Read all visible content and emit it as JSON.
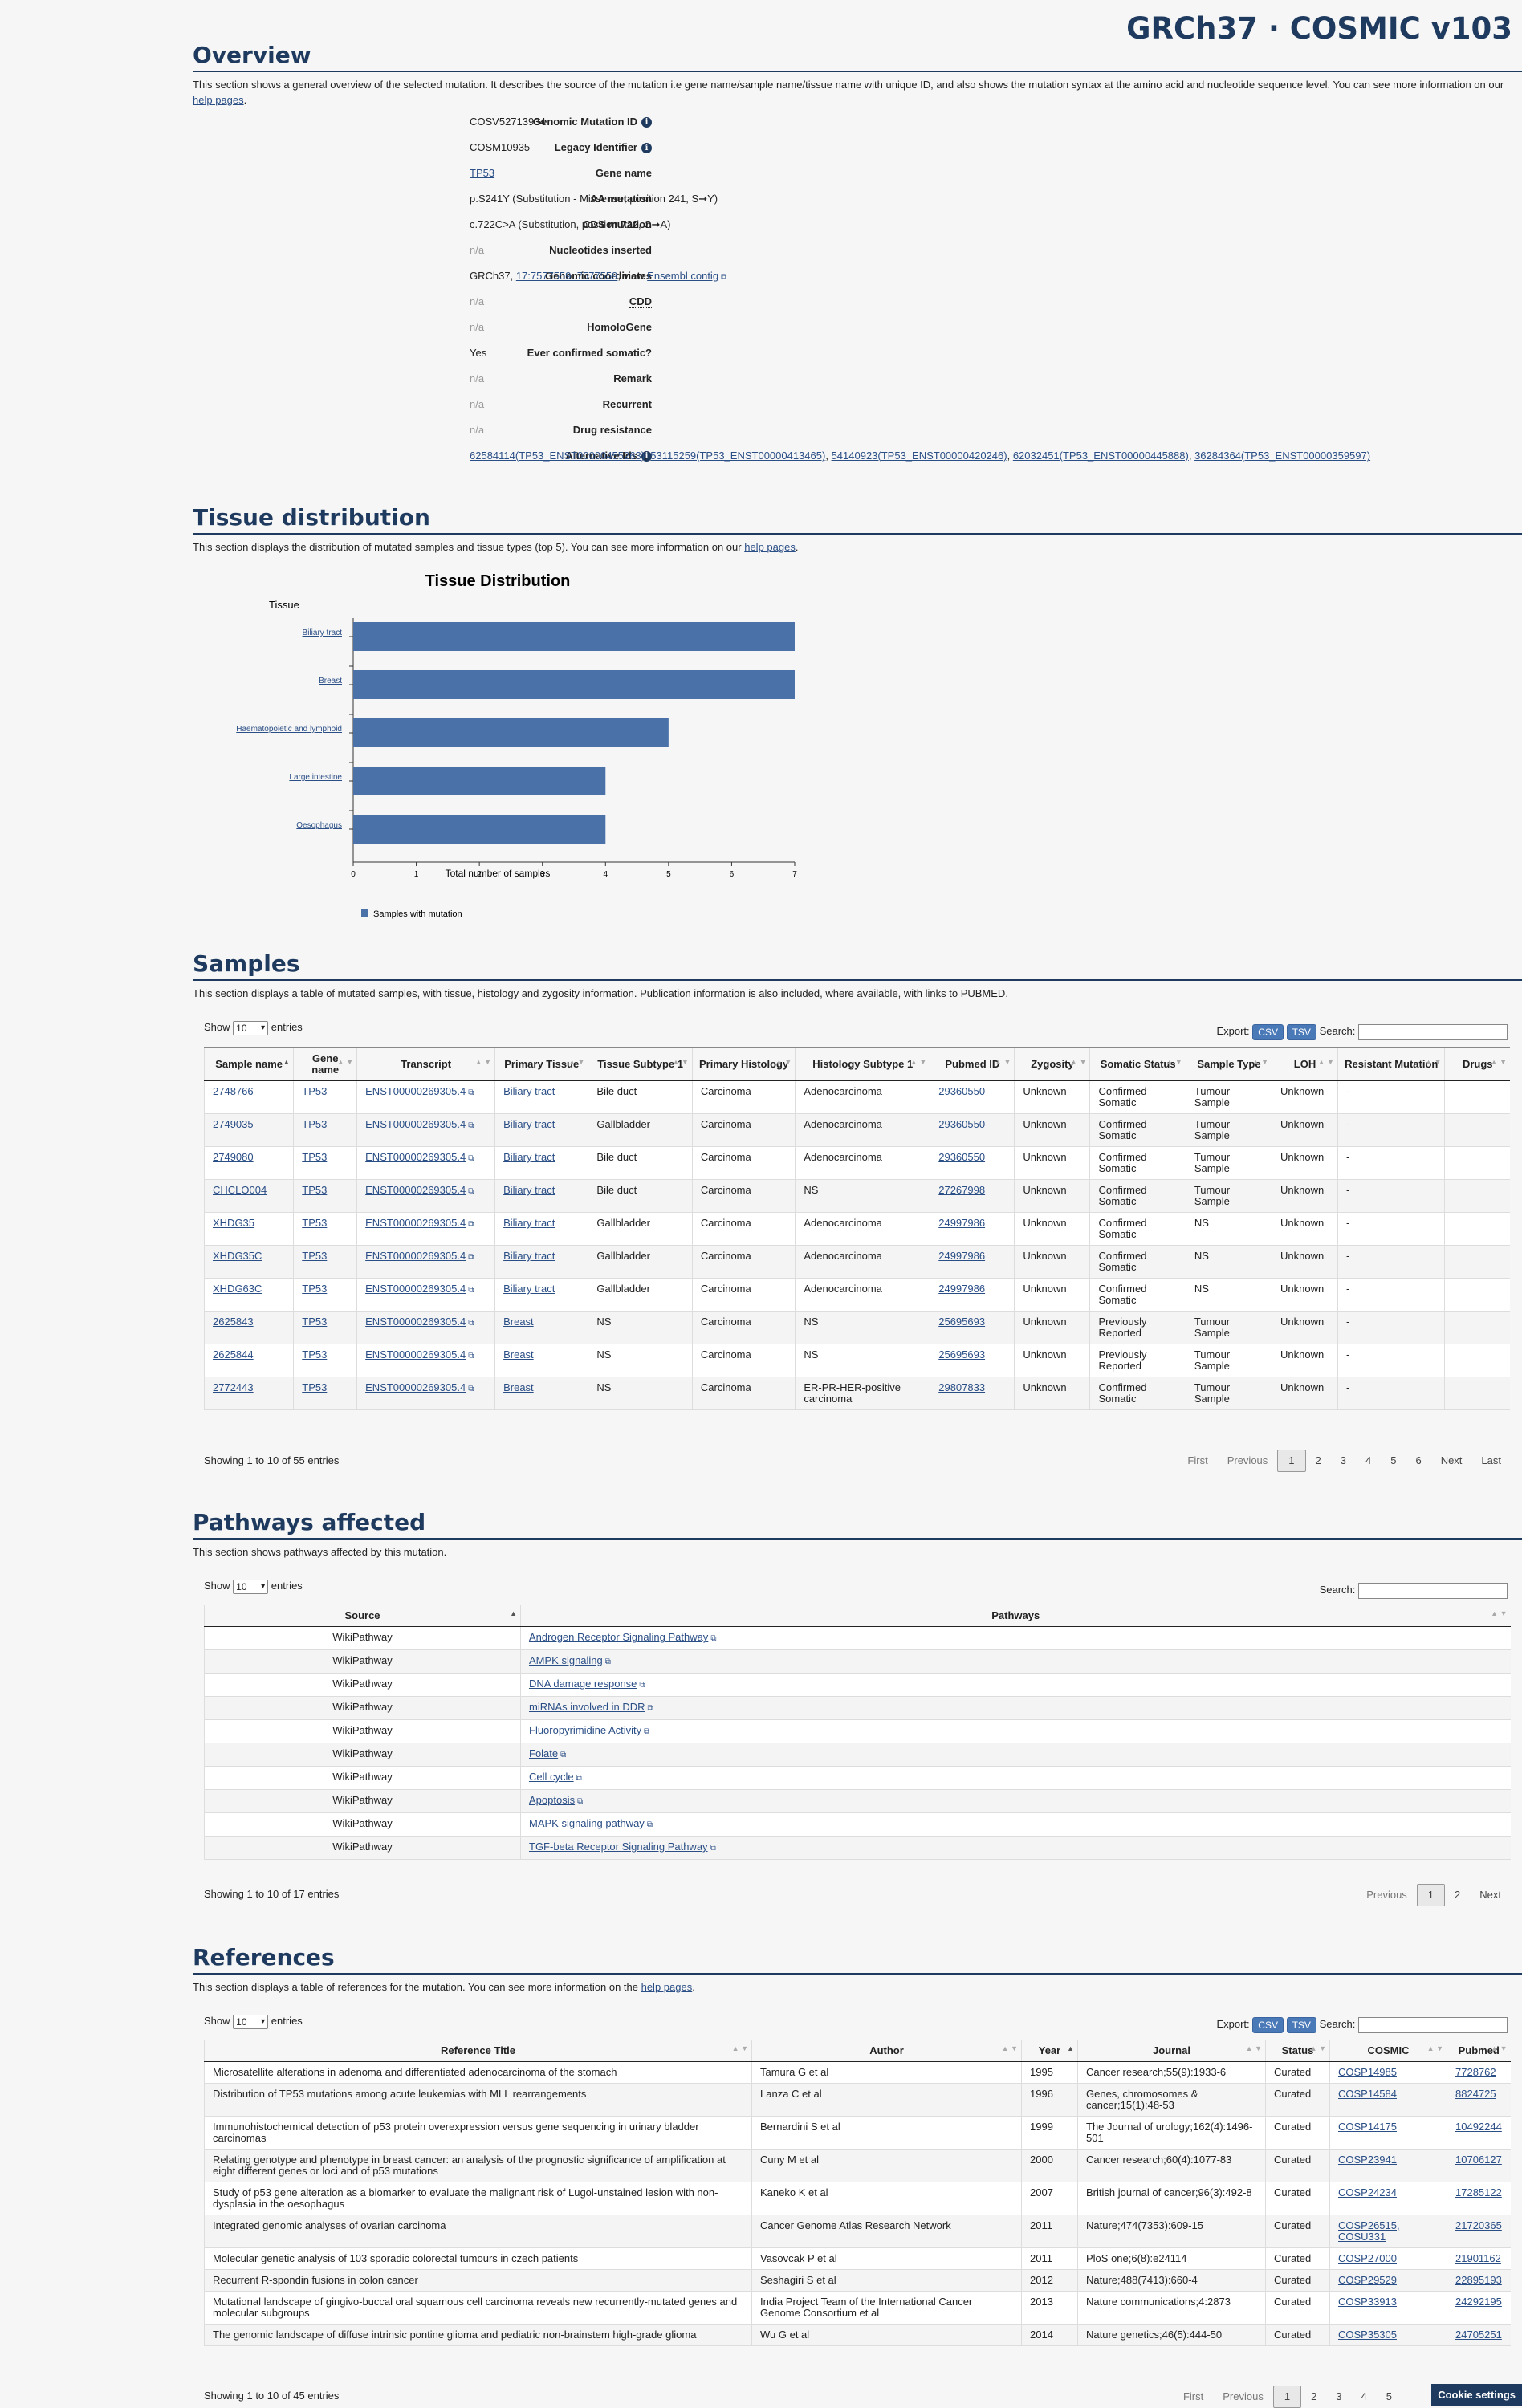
{
  "header": {
    "brand": "GRCh37 · COSMIC v103"
  },
  "overview": {
    "title": "Overview",
    "desc_pre": "This section shows a general overview of the selected mutation. It describes the source of the mutation i.e gene name/sample name/tissue name with unique ID, and also shows the mutation syntax at the amino acid and nucleotide sequence level. You can see more information on our ",
    "desc_link": "help pages",
    "desc_post": ".",
    "genomic_mutation_id_label": "Genomic Mutation ID",
    "genomic_mutation_id": "COSV52713934",
    "legacy_identifier_label": "Legacy Identifier",
    "legacy_identifier": "COSM10935",
    "gene_name_label": "Gene name",
    "gene_name": "TP53",
    "aa_mutation_label": "AA mutation",
    "aa_mutation": "p.S241Y (Substitution - Missense, position 241, S➞Y)",
    "cds_mutation_label": "CDS mutation",
    "cds_mutation": "c.722C>A (Substitution, position 722, C➞A)",
    "nucleotides_inserted_label": "Nucleotides inserted",
    "nucleotides_inserted": "n/a",
    "genomic_coordinates_label": "Genomic coordinates",
    "coord_pre": "GRCh37, ",
    "coord_link": "17:7577559..7577559",
    "coord_mid": ", view ",
    "coord_ensembl": "Ensembl contig",
    "cdd_label": "CDD",
    "cdd": "n/a",
    "homologene_label": "HomoloGene",
    "homologene": "n/a",
    "ever_confirmed_label": "Ever confirmed somatic?",
    "ever_confirmed": "Yes",
    "remark_label": "Remark",
    "remark": "n/a",
    "recurrent_label": "Recurrent",
    "recurrent": "n/a",
    "drug_resistance_label": "Drug resistance",
    "drug_resistance": "n/a",
    "alternative_ids_label": "Alternative Ids",
    "alternative_ids": [
      "62584114(TP53_ENST00000455263)",
      "53115259(TP53_ENST00000413465)",
      "54140923(TP53_ENST00000420246)",
      "62032451(TP53_ENST00000445888)",
      "36284364(TP53_ENST00000359597)"
    ],
    "alt_sep": ", "
  },
  "tissue": {
    "title": "Tissue distribution",
    "desc_pre": "This section displays the distribution of mutated samples and tissue types (top 5). You can see more information on our ",
    "desc_link": "help pages",
    "desc_post": "."
  },
  "chart_data": {
    "type": "bar",
    "orientation": "horizontal",
    "title": "Tissue Distribution",
    "ylabel": "Tissue",
    "xlabel": "Total number of samples",
    "categories": [
      "Biliary tract",
      "Breast",
      "Haematopoietic and lymphoid",
      "Large intestine",
      "Oesophagus"
    ],
    "series": [
      {
        "name": "Samples with mutation",
        "values": [
          7,
          7,
          5,
          4,
          4
        ]
      }
    ],
    "xlim": [
      0,
      7
    ],
    "xticks": [
      "0",
      "1",
      "2",
      "3",
      "4",
      "5",
      "6",
      "7"
    ],
    "color": "#4b72a8",
    "legend_position": "bottom-left",
    "grid": false
  },
  "samples": {
    "title": "Samples",
    "desc": "This section displays a table of mutated samples, with tissue, histology and zygosity information. Publication information is also included, where available, with links to PUBMED.",
    "show_label": "Show",
    "show_value": "10",
    "entries_label": "entries",
    "export_label": "Export:",
    "csv": "CSV",
    "tsv": "TSV",
    "search_label": "Search:",
    "columns": [
      "Sample name",
      "Gene name",
      "Transcript",
      "Primary Tissue",
      "Tissue Subtype 1",
      "Primary Histology",
      "Histology Subtype 1",
      "Pubmed ID",
      "Zygosity",
      "Somatic Status",
      "Sample Type",
      "LOH",
      "Resistant Mutation",
      "Drugs"
    ],
    "rows": [
      [
        "2748766",
        "TP53",
        "ENST00000269305.4",
        "Biliary tract",
        "Bile duct",
        "Carcinoma",
        "Adenocarcinoma",
        "29360550",
        "Unknown",
        "Confirmed Somatic",
        "Tumour Sample",
        "Unknown",
        "-",
        ""
      ],
      [
        "2749035",
        "TP53",
        "ENST00000269305.4",
        "Biliary tract",
        "Gallbladder",
        "Carcinoma",
        "Adenocarcinoma",
        "29360550",
        "Unknown",
        "Confirmed Somatic",
        "Tumour Sample",
        "Unknown",
        "-",
        ""
      ],
      [
        "2749080",
        "TP53",
        "ENST00000269305.4",
        "Biliary tract",
        "Bile duct",
        "Carcinoma",
        "Adenocarcinoma",
        "29360550",
        "Unknown",
        "Confirmed Somatic",
        "Tumour Sample",
        "Unknown",
        "-",
        ""
      ],
      [
        "CHCLO004",
        "TP53",
        "ENST00000269305.4",
        "Biliary tract",
        "Bile duct",
        "Carcinoma",
        "NS",
        "27267998",
        "Unknown",
        "Confirmed Somatic",
        "Tumour Sample",
        "Unknown",
        "-",
        ""
      ],
      [
        "XHDG35",
        "TP53",
        "ENST00000269305.4",
        "Biliary tract",
        "Gallbladder",
        "Carcinoma",
        "Adenocarcinoma",
        "24997986",
        "Unknown",
        "Confirmed Somatic",
        "NS",
        "Unknown",
        "-",
        ""
      ],
      [
        "XHDG35C",
        "TP53",
        "ENST00000269305.4",
        "Biliary tract",
        "Gallbladder",
        "Carcinoma",
        "Adenocarcinoma",
        "24997986",
        "Unknown",
        "Confirmed Somatic",
        "NS",
        "Unknown",
        "-",
        ""
      ],
      [
        "XHDG63C",
        "TP53",
        "ENST00000269305.4",
        "Biliary tract",
        "Gallbladder",
        "Carcinoma",
        "Adenocarcinoma",
        "24997986",
        "Unknown",
        "Confirmed Somatic",
        "NS",
        "Unknown",
        "-",
        ""
      ],
      [
        "2625843",
        "TP53",
        "ENST00000269305.4",
        "Breast",
        "NS",
        "Carcinoma",
        "NS",
        "25695693",
        "Unknown",
        "Previously Reported",
        "Tumour Sample",
        "Unknown",
        "-",
        ""
      ],
      [
        "2625844",
        "TP53",
        "ENST00000269305.4",
        "Breast",
        "NS",
        "Carcinoma",
        "NS",
        "25695693",
        "Unknown",
        "Previously Reported",
        "Tumour Sample",
        "Unknown",
        "-",
        ""
      ],
      [
        "2772443",
        "TP53",
        "ENST00000269305.4",
        "Breast",
        "NS",
        "Carcinoma",
        "ER-PR-HER-positive carcinoma",
        "29807833",
        "Unknown",
        "Confirmed Somatic",
        "Tumour Sample",
        "Unknown",
        "-",
        ""
      ]
    ],
    "info": "Showing 1 to 10 of 55 entries",
    "pager": [
      "First",
      "Previous",
      "1",
      "2",
      "3",
      "4",
      "5",
      "6",
      "Next",
      "Last"
    ]
  },
  "pathways": {
    "title": "Pathways affected",
    "desc": "This section shows pathways affected by this mutation.",
    "show_label": "Show",
    "show_value": "10",
    "entries_label": "entries",
    "search_label": "Search:",
    "columns": [
      "Source",
      "Pathways"
    ],
    "rows": [
      [
        "WikiPathway",
        "Androgen Receptor Signaling Pathway"
      ],
      [
        "WikiPathway",
        "AMPK signaling"
      ],
      [
        "WikiPathway",
        "DNA damage response"
      ],
      [
        "WikiPathway",
        "miRNAs involved in DDR"
      ],
      [
        "WikiPathway",
        "Fluoropyrimidine Activity"
      ],
      [
        "WikiPathway",
        "Folate"
      ],
      [
        "WikiPathway",
        "Cell cycle"
      ],
      [
        "WikiPathway",
        "Apoptosis"
      ],
      [
        "WikiPathway",
        "MAPK signaling pathway"
      ],
      [
        "WikiPathway",
        "TGF-beta Receptor Signaling Pathway"
      ]
    ],
    "info": "Showing 1 to 10 of 17 entries",
    "pager": [
      "Previous",
      "1",
      "2",
      "Next"
    ]
  },
  "references": {
    "title": "References",
    "desc_pre": "This section displays a table of references for the mutation. You can see more information on the ",
    "desc_link": "help pages",
    "desc_post": ".",
    "show_label": "Show",
    "show_value": "10",
    "entries_label": "entries",
    "export_label": "Export:",
    "csv": "CSV",
    "tsv": "TSV",
    "search_label": "Search:",
    "columns": [
      "Reference Title",
      "Author",
      "Year",
      "Journal",
      "Status",
      "COSMIC",
      "Pubmed"
    ],
    "rows": [
      [
        "Microsatellite alterations in adenoma and differentiated adenocarcinoma of the stomach",
        "Tamura G et al",
        "1995",
        "Cancer research;55(9):1933-6",
        "Curated",
        "COSP14985",
        "7728762"
      ],
      [
        "Distribution of TP53 mutations among acute leukemias with MLL rearrangements",
        "Lanza C et al",
        "1996",
        "Genes, chromosomes & cancer;15(1):48-53",
        "Curated",
        "COSP14584",
        "8824725"
      ],
      [
        "Immunohistochemical detection of p53 protein overexpression versus gene sequencing in urinary bladder carcinomas",
        "Bernardini S et al",
        "1999",
        "The Journal of urology;162(4):1496-501",
        "Curated",
        "COSP14175",
        "10492244"
      ],
      [
        "Relating genotype and phenotype in breast cancer: an analysis of the prognostic significance of amplification at eight different genes or loci and of p53 mutations",
        "Cuny M et al",
        "2000",
        "Cancer research;60(4):1077-83",
        "Curated",
        "COSP23941",
        "10706127"
      ],
      [
        "Study of p53 gene alteration as a biomarker to evaluate the malignant risk of Lugol-unstained lesion with non-dysplasia in the oesophagus",
        "Kaneko K et al",
        "2007",
        "British journal of cancer;96(3):492-8",
        "Curated",
        "COSP24234",
        "17285122"
      ],
      [
        "Integrated genomic analyses of ovarian carcinoma",
        "Cancer Genome Atlas Research Network",
        "2011",
        "Nature;474(7353):609-15",
        "Curated",
        "COSP26515, COSU331",
        "21720365"
      ],
      [
        "Molecular genetic analysis of 103 sporadic colorectal tumours in czech patients",
        "Vasovcak P et al",
        "2011",
        "PloS one;6(8):e24114",
        "Curated",
        "COSP27000",
        "21901162"
      ],
      [
        "Recurrent R-spondin fusions in colon cancer",
        "Seshagiri S et al",
        "2012",
        "Nature;488(7413):660-4",
        "Curated",
        "COSP29529",
        "22895193"
      ],
      [
        "Mutational landscape of gingivo-buccal oral squamous cell carcinoma reveals new recurrently-mutated genes and molecular subgroups",
        "India Project Team of the International Cancer Genome Consortium et al",
        "2013",
        "Nature communications;4:2873",
        "Curated",
        "COSP33913",
        "24292195"
      ],
      [
        "The genomic landscape of diffuse intrinsic pontine glioma and pediatric non-brainstem high-grade glioma",
        "Wu G et al",
        "2014",
        "Nature genetics;46(5):444-50",
        "Curated",
        "COSP35305",
        "24705251"
      ]
    ],
    "info": "Showing 1 to 10 of 45 entries",
    "pager": [
      "First",
      "Previous",
      "1",
      "2",
      "3",
      "4",
      "5"
    ]
  },
  "cookie": "Cookie settings"
}
